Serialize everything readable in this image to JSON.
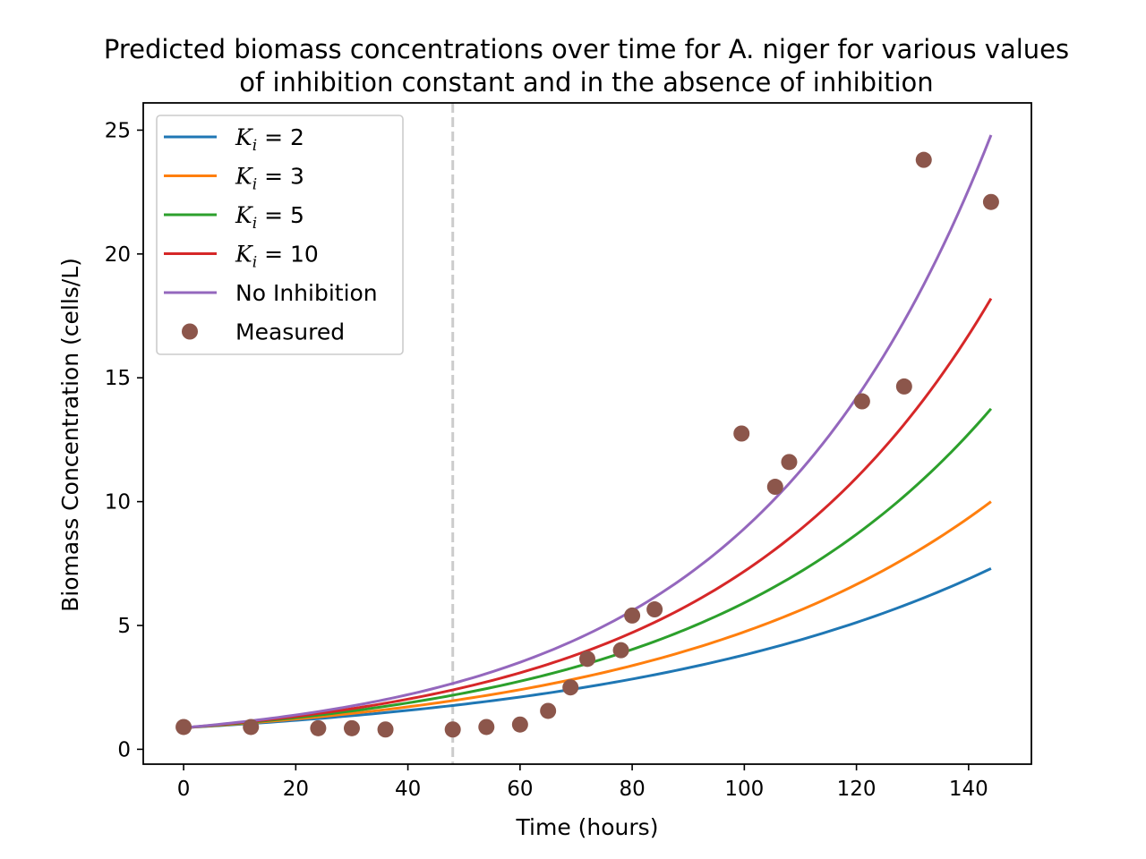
{
  "chart_data": {
    "type": "line",
    "title_lines": [
      "Predicted biomass concentrations over time for A. niger for various values",
      "of inhibition constant and in the absence of inhibition"
    ],
    "xlabel": "Time (hours)",
    "ylabel": "Biomass Concentration (cells/L)",
    "xlim": [
      -7.2,
      151.2
    ],
    "ylim": [
      -0.6,
      26.1
    ],
    "xticks": [
      0,
      20,
      40,
      60,
      80,
      100,
      120,
      140
    ],
    "yticks": [
      0,
      5,
      10,
      15,
      20,
      25
    ],
    "grid": false,
    "legend_position": "upper left",
    "vline": {
      "x": 48,
      "style": "dashed",
      "color": "#cccccc"
    },
    "series": [
      {
        "name": "K_i = 2",
        "color": "#1f77b4",
        "x0": 0,
        "x1": 144,
        "y0": 0.87,
        "y1": 7.3
      },
      {
        "name": "K_i = 3",
        "color": "#ff7f0e",
        "x0": 0,
        "x1": 144,
        "y0": 0.87,
        "y1": 10.0
      },
      {
        "name": "K_i = 5",
        "color": "#2ca02c",
        "x0": 0,
        "x1": 144,
        "y0": 0.87,
        "y1": 13.75
      },
      {
        "name": "K_i = 10",
        "color": "#d62728",
        "x0": 0,
        "x1": 144,
        "y0": 0.87,
        "y1": 18.2
      },
      {
        "name": "No Inhibition",
        "color": "#9467bd",
        "x0": 0,
        "x1": 144,
        "y0": 0.87,
        "y1": 24.8
      }
    ],
    "measured": {
      "name": "Measured",
      "color": "#8c564b",
      "points": [
        [
          0,
          0.9
        ],
        [
          12,
          0.9
        ],
        [
          24,
          0.85
        ],
        [
          30,
          0.85
        ],
        [
          36,
          0.8
        ],
        [
          48,
          0.8
        ],
        [
          54,
          0.9
        ],
        [
          60,
          1.0
        ],
        [
          65,
          1.55
        ],
        [
          69,
          2.5
        ],
        [
          72,
          3.65
        ],
        [
          78,
          4.0
        ],
        [
          80,
          5.4
        ],
        [
          84,
          5.65
        ],
        [
          99.5,
          12.75
        ],
        [
          105.5,
          10.6
        ],
        [
          108,
          11.6
        ],
        [
          121,
          14.05
        ],
        [
          128.5,
          14.65
        ],
        [
          132,
          23.8
        ],
        [
          144,
          22.1
        ]
      ]
    }
  },
  "legend": {
    "entries": [
      {
        "sym": "K",
        "sub": "i",
        "eq": " = 2"
      },
      {
        "sym": "K",
        "sub": "i",
        "eq": " = 3"
      },
      {
        "sym": "K",
        "sub": "i",
        "eq": " = 5"
      },
      {
        "sym": "K",
        "sub": "i",
        "eq": " = 10"
      },
      {
        "plain": "No Inhibition"
      },
      {
        "plain": "Measured"
      }
    ]
  }
}
